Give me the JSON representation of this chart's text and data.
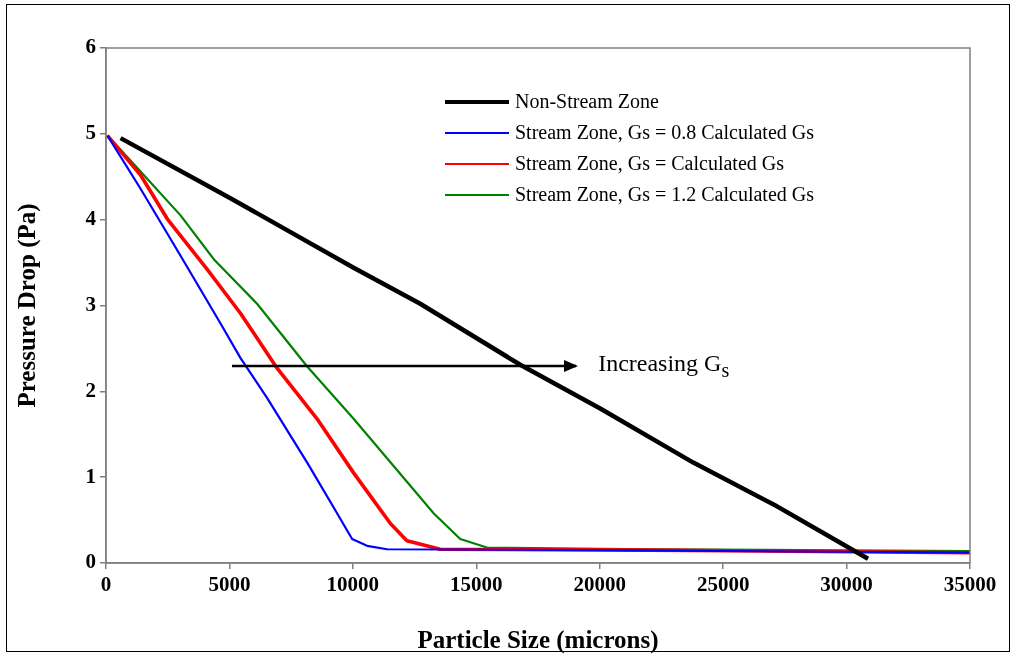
{
  "chart_data": {
    "type": "line",
    "xlabel": "Particle Size (microns)",
    "ylabel": "Pressure Drop (Pa)",
    "xlim": [
      0,
      35000
    ],
    "xticks": [
      0,
      5000,
      10000,
      15000,
      20000,
      25000,
      30000,
      35000
    ],
    "ylim": [
      0,
      6
    ],
    "yticks": [
      0,
      1,
      2,
      3,
      4,
      5,
      6
    ],
    "legend": "top right",
    "marker": "none",
    "line_style": "solid",
    "annotations": [
      "Increasing G$_{s}$"
    ],
    "series": [
      {
        "name": "Non-Stream Zone",
        "color": "#000000",
        "x": [
          590,
          5040,
          10030,
          12730,
          16780,
          20020,
          23790,
          27180,
          30870
        ],
        "values": [
          4.95,
          4.25,
          3.44,
          3.02,
          2.31,
          1.8,
          1.17,
          0.66,
          0.05
        ]
      },
      {
        "name": "Stream Zone, Gs = 0.8 Calculated Gs",
        "color": "#0000ff",
        "x": [
          60,
          1400,
          3020,
          4640,
          5445,
          6530,
          8150,
          9360,
          9970,
          10575,
          11385,
          20000,
          35000
        ],
        "values": [
          4.98,
          4.36,
          3.58,
          2.79,
          2.39,
          1.92,
          1.17,
          0.58,
          0.28,
          0.2,
          0.16,
          0.15,
          0.12
        ]
      },
      {
        "name": "Stream Zone, Gs = Calculated Gs",
        "color": "#ff0000",
        "x": [
          60,
          1400,
          2480,
          4100,
          5445,
          6930,
          8550,
          10030,
          11520,
          12190,
          13540,
          22000,
          35000
        ],
        "values": [
          4.98,
          4.52,
          4.01,
          3.42,
          2.91,
          2.27,
          1.68,
          1.05,
          0.46,
          0.26,
          0.16,
          0.15,
          0.12
        ]
      },
      {
        "name": "Stream Zone, Gs = 1.2 Calculated Gs",
        "color": "#008000",
        "x": [
          60,
          1400,
          3020,
          4365,
          6120,
          8150,
          10030,
          11650,
          13270,
          14350,
          15430,
          22000,
          35000
        ],
        "values": [
          4.98,
          4.56,
          4.05,
          3.54,
          3.02,
          2.29,
          1.68,
          1.13,
          0.58,
          0.28,
          0.18,
          0.16,
          0.14
        ]
      }
    ]
  }
}
